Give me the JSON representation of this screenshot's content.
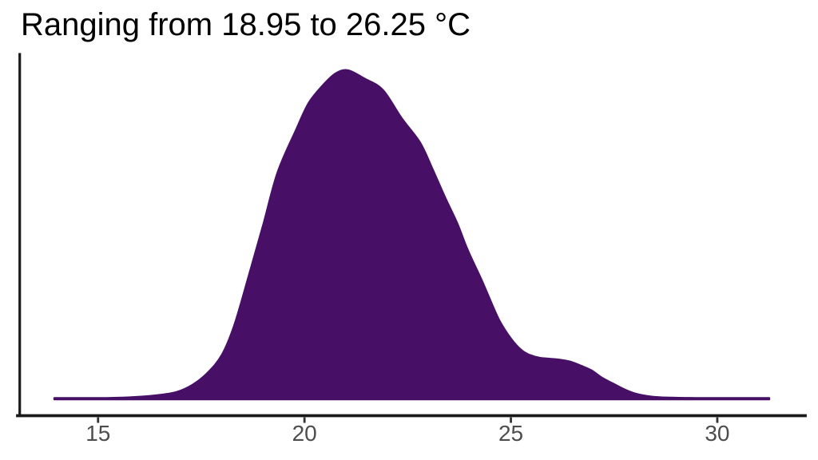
{
  "page": {
    "background": "#ffffff"
  },
  "header": {
    "title": "Ranging from 18.95 to 26.25 °C"
  },
  "colors": {
    "density_fill": "#471066",
    "density_stroke": "#471066",
    "axis_line": "#1a1a1a",
    "tick_mark": "#333333",
    "tick_label": "#4d4d4d",
    "title_text": "#000000",
    "background": "#ffffff"
  },
  "chart_data": {
    "type": "area",
    "subtype": "kernel-density",
    "title": "Ranging from 18.95 to 26.25 °C",
    "xlabel": "",
    "ylabel": "",
    "unit": "°C",
    "range_label_min": 18.95,
    "range_label_max": 26.25,
    "grid": false,
    "legend": "none",
    "y_axis_labels_visible": false,
    "xlim": [
      13.05,
      32.13
    ],
    "x_ticks": [
      15,
      20,
      25,
      30
    ],
    "x_tick_labels": [
      "15",
      "20",
      "25",
      "30"
    ],
    "series": [
      {
        "name": "temperature-density",
        "peak_x": 21.05,
        "points": [
          [
            13.94,
            0.004
          ],
          [
            14.6,
            0.004
          ],
          [
            15.2,
            0.004
          ],
          [
            15.8,
            0.006
          ],
          [
            16.4,
            0.012
          ],
          [
            16.9,
            0.022
          ],
          [
            17.3,
            0.045
          ],
          [
            17.65,
            0.08
          ],
          [
            18.0,
            0.135
          ],
          [
            18.3,
            0.225
          ],
          [
            18.65,
            0.375
          ],
          [
            19.0,
            0.53
          ],
          [
            19.35,
            0.69
          ],
          [
            19.8,
            0.82
          ],
          [
            20.1,
            0.9
          ],
          [
            20.45,
            0.955
          ],
          [
            20.75,
            0.99
          ],
          [
            21.05,
            1.0
          ],
          [
            21.45,
            0.975
          ],
          [
            21.9,
            0.94
          ],
          [
            22.35,
            0.855
          ],
          [
            22.8,
            0.78
          ],
          [
            23.1,
            0.7
          ],
          [
            23.4,
            0.615
          ],
          [
            23.7,
            0.535
          ],
          [
            23.95,
            0.455
          ],
          [
            24.3,
            0.36
          ],
          [
            24.7,
            0.245
          ],
          [
            25.0,
            0.185
          ],
          [
            25.25,
            0.15
          ],
          [
            25.45,
            0.135
          ],
          [
            25.7,
            0.126
          ],
          [
            25.95,
            0.123
          ],
          [
            26.2,
            0.12
          ],
          [
            26.45,
            0.114
          ],
          [
            26.7,
            0.102
          ],
          [
            26.95,
            0.088
          ],
          [
            27.2,
            0.066
          ],
          [
            27.5,
            0.046
          ],
          [
            27.75,
            0.03
          ],
          [
            28.0,
            0.018
          ],
          [
            28.3,
            0.01
          ],
          [
            28.6,
            0.006
          ],
          [
            29.0,
            0.0045
          ],
          [
            29.5,
            0.004
          ],
          [
            30.3,
            0.004
          ],
          [
            31.26,
            0.004
          ]
        ]
      }
    ]
  }
}
